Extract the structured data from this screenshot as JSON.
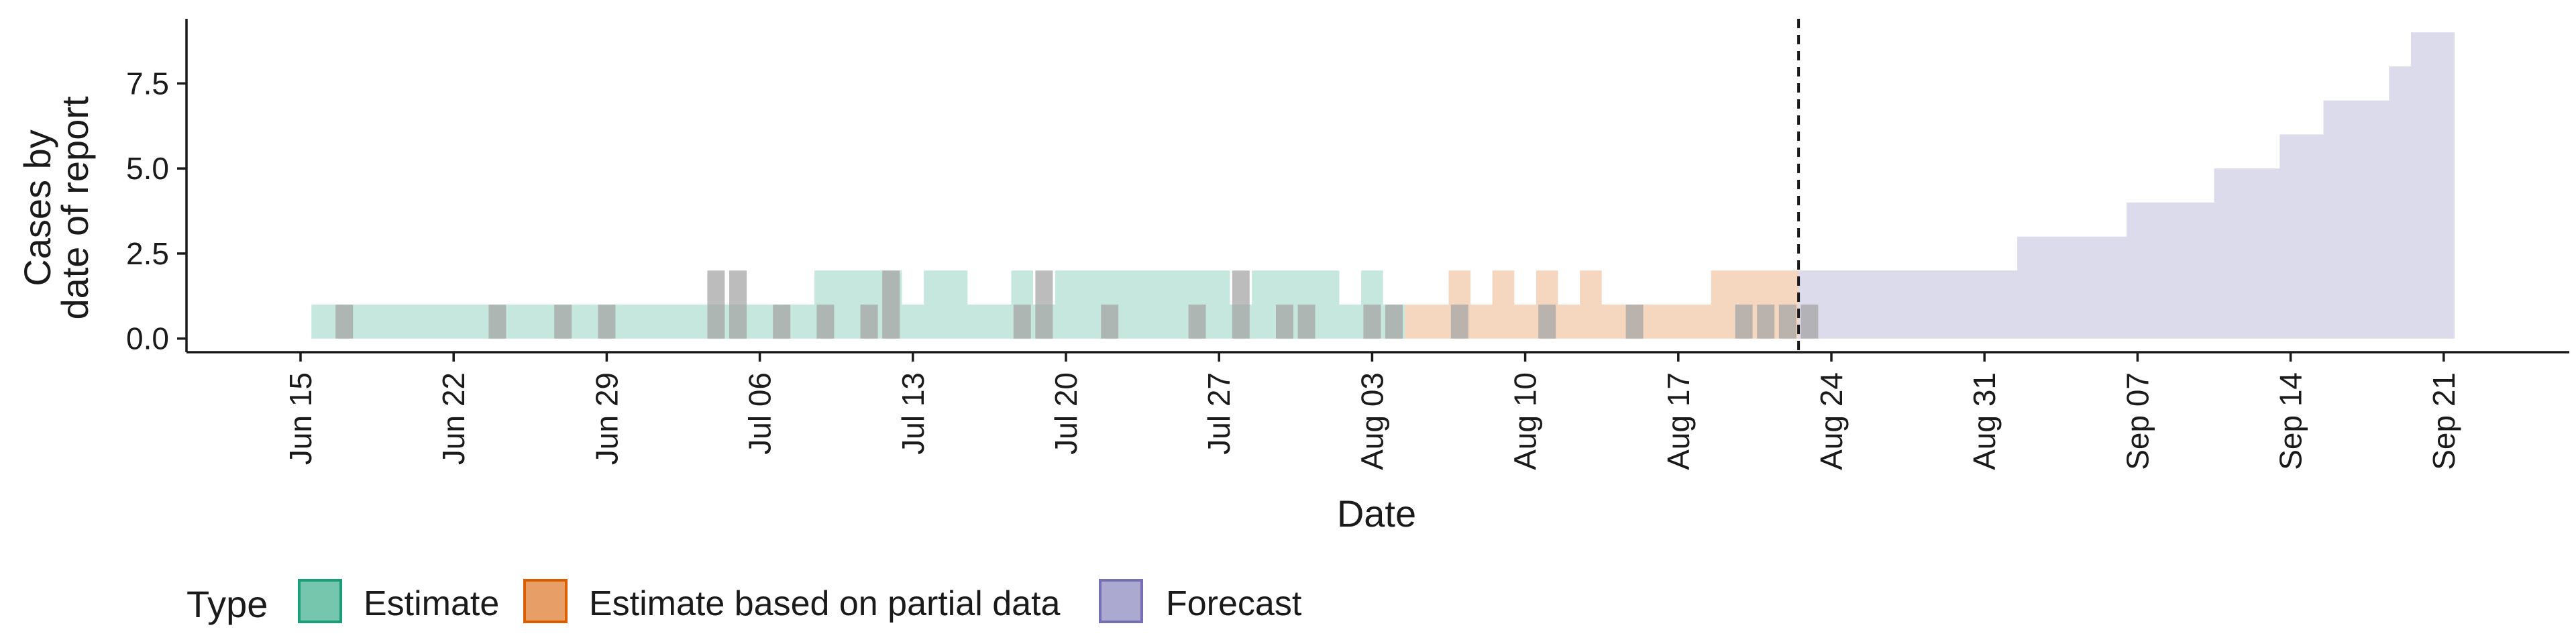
{
  "chart_data": {
    "type": "area",
    "title": "",
    "xlabel": "Date",
    "ylabel": [
      "Cases by",
      "date of report"
    ],
    "ylim": [
      -0.4,
      9.4
    ],
    "xlim_days": [
      -5,
      101
    ],
    "x_origin": "Jun 15",
    "yticks": [
      {
        "value": 0.0,
        "label": "0.0"
      },
      {
        "value": 2.5,
        "label": "2.5"
      },
      {
        "value": 5.0,
        "label": "5.0"
      },
      {
        "value": 7.5,
        "label": "7.5"
      }
    ],
    "xticks": [
      {
        "day": 0,
        "label": "Jun 15"
      },
      {
        "day": 7,
        "label": "Jun 22"
      },
      {
        "day": 14,
        "label": "Jun 29"
      },
      {
        "day": 21,
        "label": "Jul 06"
      },
      {
        "day": 28,
        "label": "Jul 13"
      },
      {
        "day": 35,
        "label": "Jul 20"
      },
      {
        "day": 42,
        "label": "Jul 27"
      },
      {
        "day": 49,
        "label": "Aug 03"
      },
      {
        "day": 56,
        "label": "Aug 10"
      },
      {
        "day": 63,
        "label": "Aug 17"
      },
      {
        "day": 70,
        "label": "Aug 24"
      },
      {
        "day": 77,
        "label": "Aug 31"
      },
      {
        "day": 84,
        "label": "Sep 07"
      },
      {
        "day": 91,
        "label": "Sep 14"
      },
      {
        "day": 98,
        "label": "Sep 21"
      }
    ],
    "forecast_start_day": 69,
    "series": [
      {
        "name": "Estimate",
        "color": "#1B9E77",
        "range_days": [
          1,
          50
        ],
        "values": [
          1,
          1,
          1,
          1,
          1,
          1,
          1,
          1,
          1,
          1,
          1,
          1,
          1,
          1,
          1,
          1,
          1,
          1,
          1,
          1,
          1,
          1,
          1,
          2,
          2,
          2,
          2,
          1,
          2,
          2,
          1,
          1,
          2,
          1,
          2,
          2,
          2,
          2,
          2,
          2,
          2,
          2,
          1,
          2,
          2,
          2,
          2,
          1,
          2,
          1
        ]
      },
      {
        "name": "Estimate based on partial data",
        "color": "#D95F02",
        "range_days": [
          51,
          68
        ],
        "values": [
          1,
          1,
          2,
          1,
          2,
          1,
          2,
          1,
          2,
          1,
          1,
          1,
          1,
          1,
          2,
          2,
          2,
          2
        ]
      },
      {
        "name": "Forecast",
        "color": "#7570B3",
        "range_days": [
          69,
          98
        ],
        "values": [
          2,
          2,
          2,
          2,
          2,
          2,
          2,
          2,
          2,
          2,
          3,
          3,
          3,
          3,
          3,
          4,
          4,
          4,
          4,
          5,
          5,
          5,
          6,
          6,
          7,
          7,
          7,
          8,
          9,
          9
        ]
      }
    ],
    "observed_bars": {
      "color": "#A6A6A6",
      "values": [
        {
          "day": 2,
          "value": 1
        },
        {
          "day": 9,
          "value": 1
        },
        {
          "day": 12,
          "value": 1
        },
        {
          "day": 14,
          "value": 1
        },
        {
          "day": 19,
          "value": 2
        },
        {
          "day": 20,
          "value": 2
        },
        {
          "day": 22,
          "value": 1
        },
        {
          "day": 24,
          "value": 1
        },
        {
          "day": 26,
          "value": 1
        },
        {
          "day": 27,
          "value": 2
        },
        {
          "day": 33,
          "value": 1
        },
        {
          "day": 34,
          "value": 2
        },
        {
          "day": 37,
          "value": 1
        },
        {
          "day": 41,
          "value": 1
        },
        {
          "day": 43,
          "value": 2
        },
        {
          "day": 45,
          "value": 1
        },
        {
          "day": 46,
          "value": 1
        },
        {
          "day": 49,
          "value": 1
        },
        {
          "day": 50,
          "value": 1
        },
        {
          "day": 53,
          "value": 1
        },
        {
          "day": 57,
          "value": 1
        },
        {
          "day": 61,
          "value": 1
        },
        {
          "day": 66,
          "value": 1
        },
        {
          "day": 67,
          "value": 1
        },
        {
          "day": 68,
          "value": 1
        },
        {
          "day": 69,
          "value": 1
        }
      ]
    },
    "legend": {
      "position": "bottom",
      "title": "Type",
      "items": [
        "Estimate",
        "Estimate based on partial data",
        "Forecast"
      ]
    }
  }
}
